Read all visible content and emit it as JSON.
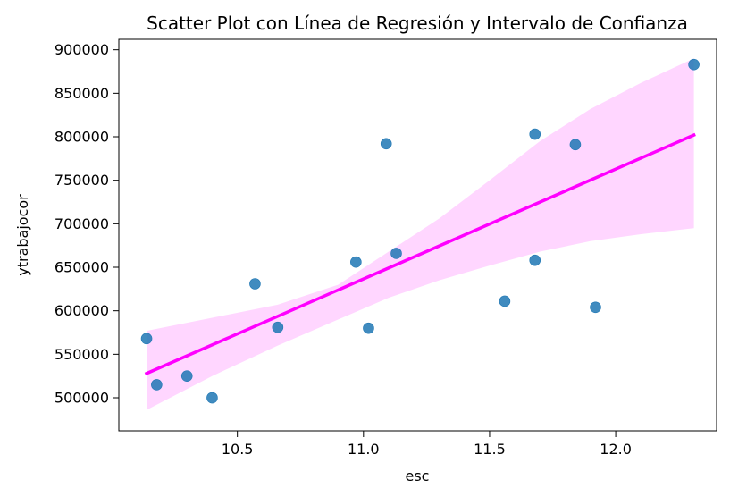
{
  "chart_data": {
    "type": "scatter",
    "title": "Scatter Plot con Línea de Regresión y Intervalo de Confianza",
    "xlabel": "esc",
    "ylabel": "ytrabajocor",
    "xlim": [
      10.03,
      12.4
    ],
    "ylim": [
      462000,
      912000
    ],
    "x_ticks": [
      10.5,
      11.0,
      11.5,
      12.0
    ],
    "x_tick_labels": [
      "10.5",
      "11.0",
      "11.5",
      "12.0"
    ],
    "y_ticks": [
      500000,
      550000,
      600000,
      650000,
      700000,
      750000,
      800000,
      850000,
      900000
    ],
    "y_tick_labels": [
      "500000",
      "550000",
      "600000",
      "650000",
      "700000",
      "750000",
      "800000",
      "850000",
      "900000"
    ],
    "grid": false,
    "colors": {
      "points": "#1f77b4",
      "regression_line": "#ff00ff",
      "confidence_band": "#ffd6ff"
    },
    "points": [
      {
        "x": 10.14,
        "y": 568000
      },
      {
        "x": 10.18,
        "y": 515000
      },
      {
        "x": 10.3,
        "y": 525000
      },
      {
        "x": 10.4,
        "y": 500000
      },
      {
        "x": 10.57,
        "y": 631000
      },
      {
        "x": 10.66,
        "y": 581000
      },
      {
        "x": 10.97,
        "y": 656000
      },
      {
        "x": 11.02,
        "y": 580000
      },
      {
        "x": 11.09,
        "y": 792000
      },
      {
        "x": 11.13,
        "y": 666000
      },
      {
        "x": 11.56,
        "y": 611000
      },
      {
        "x": 11.68,
        "y": 803000
      },
      {
        "x": 11.68,
        "y": 658000
      },
      {
        "x": 11.84,
        "y": 791000
      },
      {
        "x": 11.92,
        "y": 604000
      },
      {
        "x": 12.31,
        "y": 883000
      }
    ],
    "regression": {
      "x": [
        10.14,
        12.31
      ],
      "y": [
        528000,
        802000
      ]
    },
    "confidence_band": [
      {
        "x": 10.14,
        "lower": 486000,
        "upper": 577000
      },
      {
        "x": 10.4,
        "lower": 525000,
        "upper": 592000
      },
      {
        "x": 10.66,
        "lower": 560000,
        "upper": 607000
      },
      {
        "x": 10.9,
        "lower": 590000,
        "upper": 630000
      },
      {
        "x": 11.1,
        "lower": 615000,
        "upper": 668000
      },
      {
        "x": 11.3,
        "lower": 635000,
        "upper": 706000
      },
      {
        "x": 11.5,
        "lower": 652000,
        "upper": 750000
      },
      {
        "x": 11.7,
        "lower": 668000,
        "upper": 795000
      },
      {
        "x": 11.9,
        "lower": 680000,
        "upper": 832000
      },
      {
        "x": 12.1,
        "lower": 688000,
        "upper": 862000
      },
      {
        "x": 12.31,
        "lower": 695000,
        "upper": 890000
      }
    ]
  }
}
